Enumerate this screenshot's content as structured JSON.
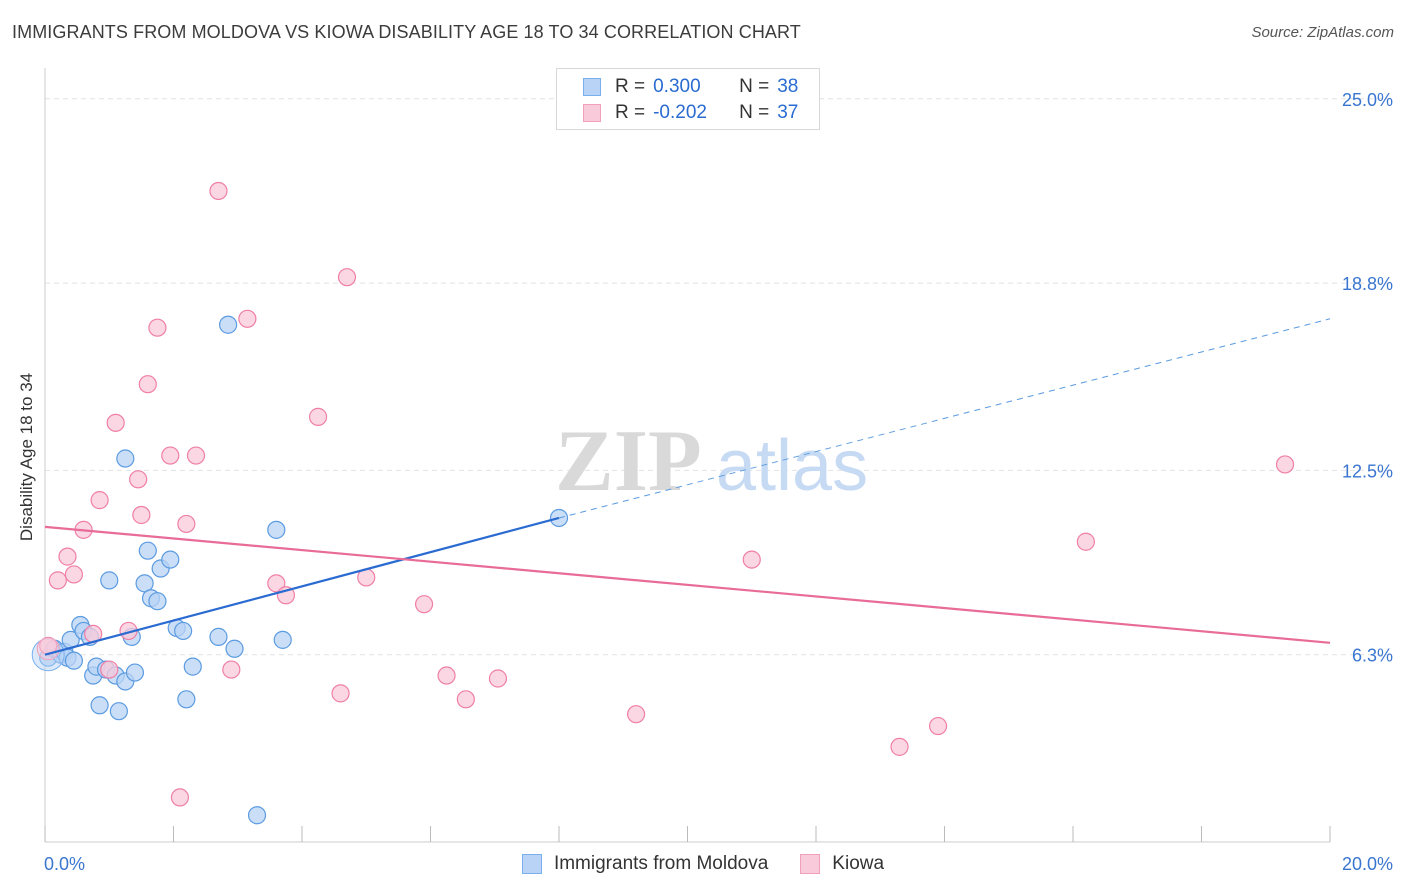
{
  "title": "IMMIGRANTS FROM MOLDOVA VS KIOWA DISABILITY AGE 18 TO 34 CORRELATION CHART",
  "source": "Source: ZipAtlas.com",
  "watermark": {
    "zip": "ZIP",
    "atlas": "atlas"
  },
  "legend_stats": [
    {
      "r_label": "R =",
      "r_value": "0.300",
      "n_label": "N =",
      "n_value": "38",
      "color": "#7ab0ee",
      "fill": "#b8d3f5"
    },
    {
      "r_label": "R =",
      "r_value": "-0.202",
      "n_label": "N =",
      "n_value": "37",
      "color": "#f0a0bc",
      "fill": "#f9cad9"
    }
  ],
  "chart_data": {
    "type": "scatter",
    "title": "IMMIGRANTS FROM MOLDOVA VS KIOWA DISABILITY AGE 18 TO 34 CORRELATION CHART",
    "xlabel": "",
    "ylabel": "Disability Age 18 to 34",
    "xlim": [
      0,
      20
    ],
    "ylim": [
      0,
      25.7
    ],
    "x_tick_labels": [
      {
        "value": 0,
        "label": "0.0%"
      },
      {
        "value": 20,
        "label": "20.0%"
      }
    ],
    "y_tick_labels": [
      {
        "value": 6.3,
        "label": "6.3%"
      },
      {
        "value": 12.5,
        "label": "12.5%"
      },
      {
        "value": 18.8,
        "label": "18.8%"
      },
      {
        "value": 25.0,
        "label": "25.0%"
      }
    ],
    "grid": true,
    "legend_position": "bottom",
    "series": [
      {
        "name": "Immigrants from Moldova",
        "color": "#5b9be0",
        "fill": "#b8d3f5",
        "points": [
          [
            0.05,
            6.2
          ],
          [
            0.15,
            6.5
          ],
          [
            0.25,
            6.3
          ],
          [
            0.3,
            6.4
          ],
          [
            0.35,
            6.2
          ],
          [
            0.4,
            6.8
          ],
          [
            0.45,
            6.1
          ],
          [
            0.55,
            7.3
          ],
          [
            0.6,
            7.1
          ],
          [
            0.7,
            6.9
          ],
          [
            0.75,
            5.6
          ],
          [
            0.8,
            5.9
          ],
          [
            0.85,
            4.6
          ],
          [
            0.95,
            5.8
          ],
          [
            1.0,
            8.8
          ],
          [
            1.1,
            5.6
          ],
          [
            1.15,
            4.4
          ],
          [
            1.25,
            5.4
          ],
          [
            1.35,
            6.9
          ],
          [
            1.4,
            5.7
          ],
          [
            1.55,
            8.7
          ],
          [
            1.6,
            9.8
          ],
          [
            1.65,
            8.2
          ],
          [
            1.75,
            8.1
          ],
          [
            1.8,
            9.2
          ],
          [
            1.95,
            9.5
          ],
          [
            2.05,
            7.2
          ],
          [
            2.15,
            7.1
          ],
          [
            2.2,
            4.8
          ],
          [
            2.3,
            5.9
          ],
          [
            2.7,
            6.9
          ],
          [
            2.85,
            17.4
          ],
          [
            2.95,
            6.5
          ],
          [
            3.3,
            0.9
          ],
          [
            3.6,
            10.5
          ],
          [
            3.7,
            6.8
          ],
          [
            1.25,
            12.9
          ],
          [
            8.0,
            10.9
          ]
        ],
        "trend": {
          "x1": 0,
          "y1": 6.3,
          "x2": 8.0,
          "y2": 10.9,
          "dashed_to_x": 20,
          "dashed_to_y": 17.6
        }
      },
      {
        "name": "Kiowa",
        "color": "#ef7fa6",
        "fill": "#f9cad9",
        "points": [
          [
            0.05,
            6.6
          ],
          [
            0.2,
            8.8
          ],
          [
            0.35,
            9.6
          ],
          [
            0.45,
            9.0
          ],
          [
            0.6,
            10.5
          ],
          [
            0.75,
            7.0
          ],
          [
            0.85,
            11.5
          ],
          [
            1.0,
            5.8
          ],
          [
            1.1,
            14.1
          ],
          [
            1.3,
            7.1
          ],
          [
            1.45,
            12.2
          ],
          [
            1.5,
            11.0
          ],
          [
            1.6,
            15.4
          ],
          [
            1.75,
            17.3
          ],
          [
            1.95,
            13.0
          ],
          [
            2.2,
            10.7
          ],
          [
            2.35,
            13.0
          ],
          [
            2.7,
            21.9
          ],
          [
            2.9,
            5.8
          ],
          [
            3.15,
            17.6
          ],
          [
            3.6,
            8.7
          ],
          [
            3.75,
            8.3
          ],
          [
            4.25,
            14.3
          ],
          [
            4.6,
            5.0
          ],
          [
            4.7,
            19.0
          ],
          [
            5.0,
            8.9
          ],
          [
            5.9,
            8.0
          ],
          [
            6.25,
            5.6
          ],
          [
            6.55,
            4.8
          ],
          [
            7.05,
            5.5
          ],
          [
            2.1,
            1.5
          ],
          [
            9.2,
            4.3
          ],
          [
            11.0,
            9.5
          ],
          [
            13.3,
            3.2
          ],
          [
            13.9,
            3.9
          ],
          [
            16.2,
            10.1
          ],
          [
            19.3,
            12.7
          ]
        ],
        "trend": {
          "x1": 0,
          "y1": 10.6,
          "x2": 20,
          "y2": 6.7
        }
      }
    ]
  }
}
